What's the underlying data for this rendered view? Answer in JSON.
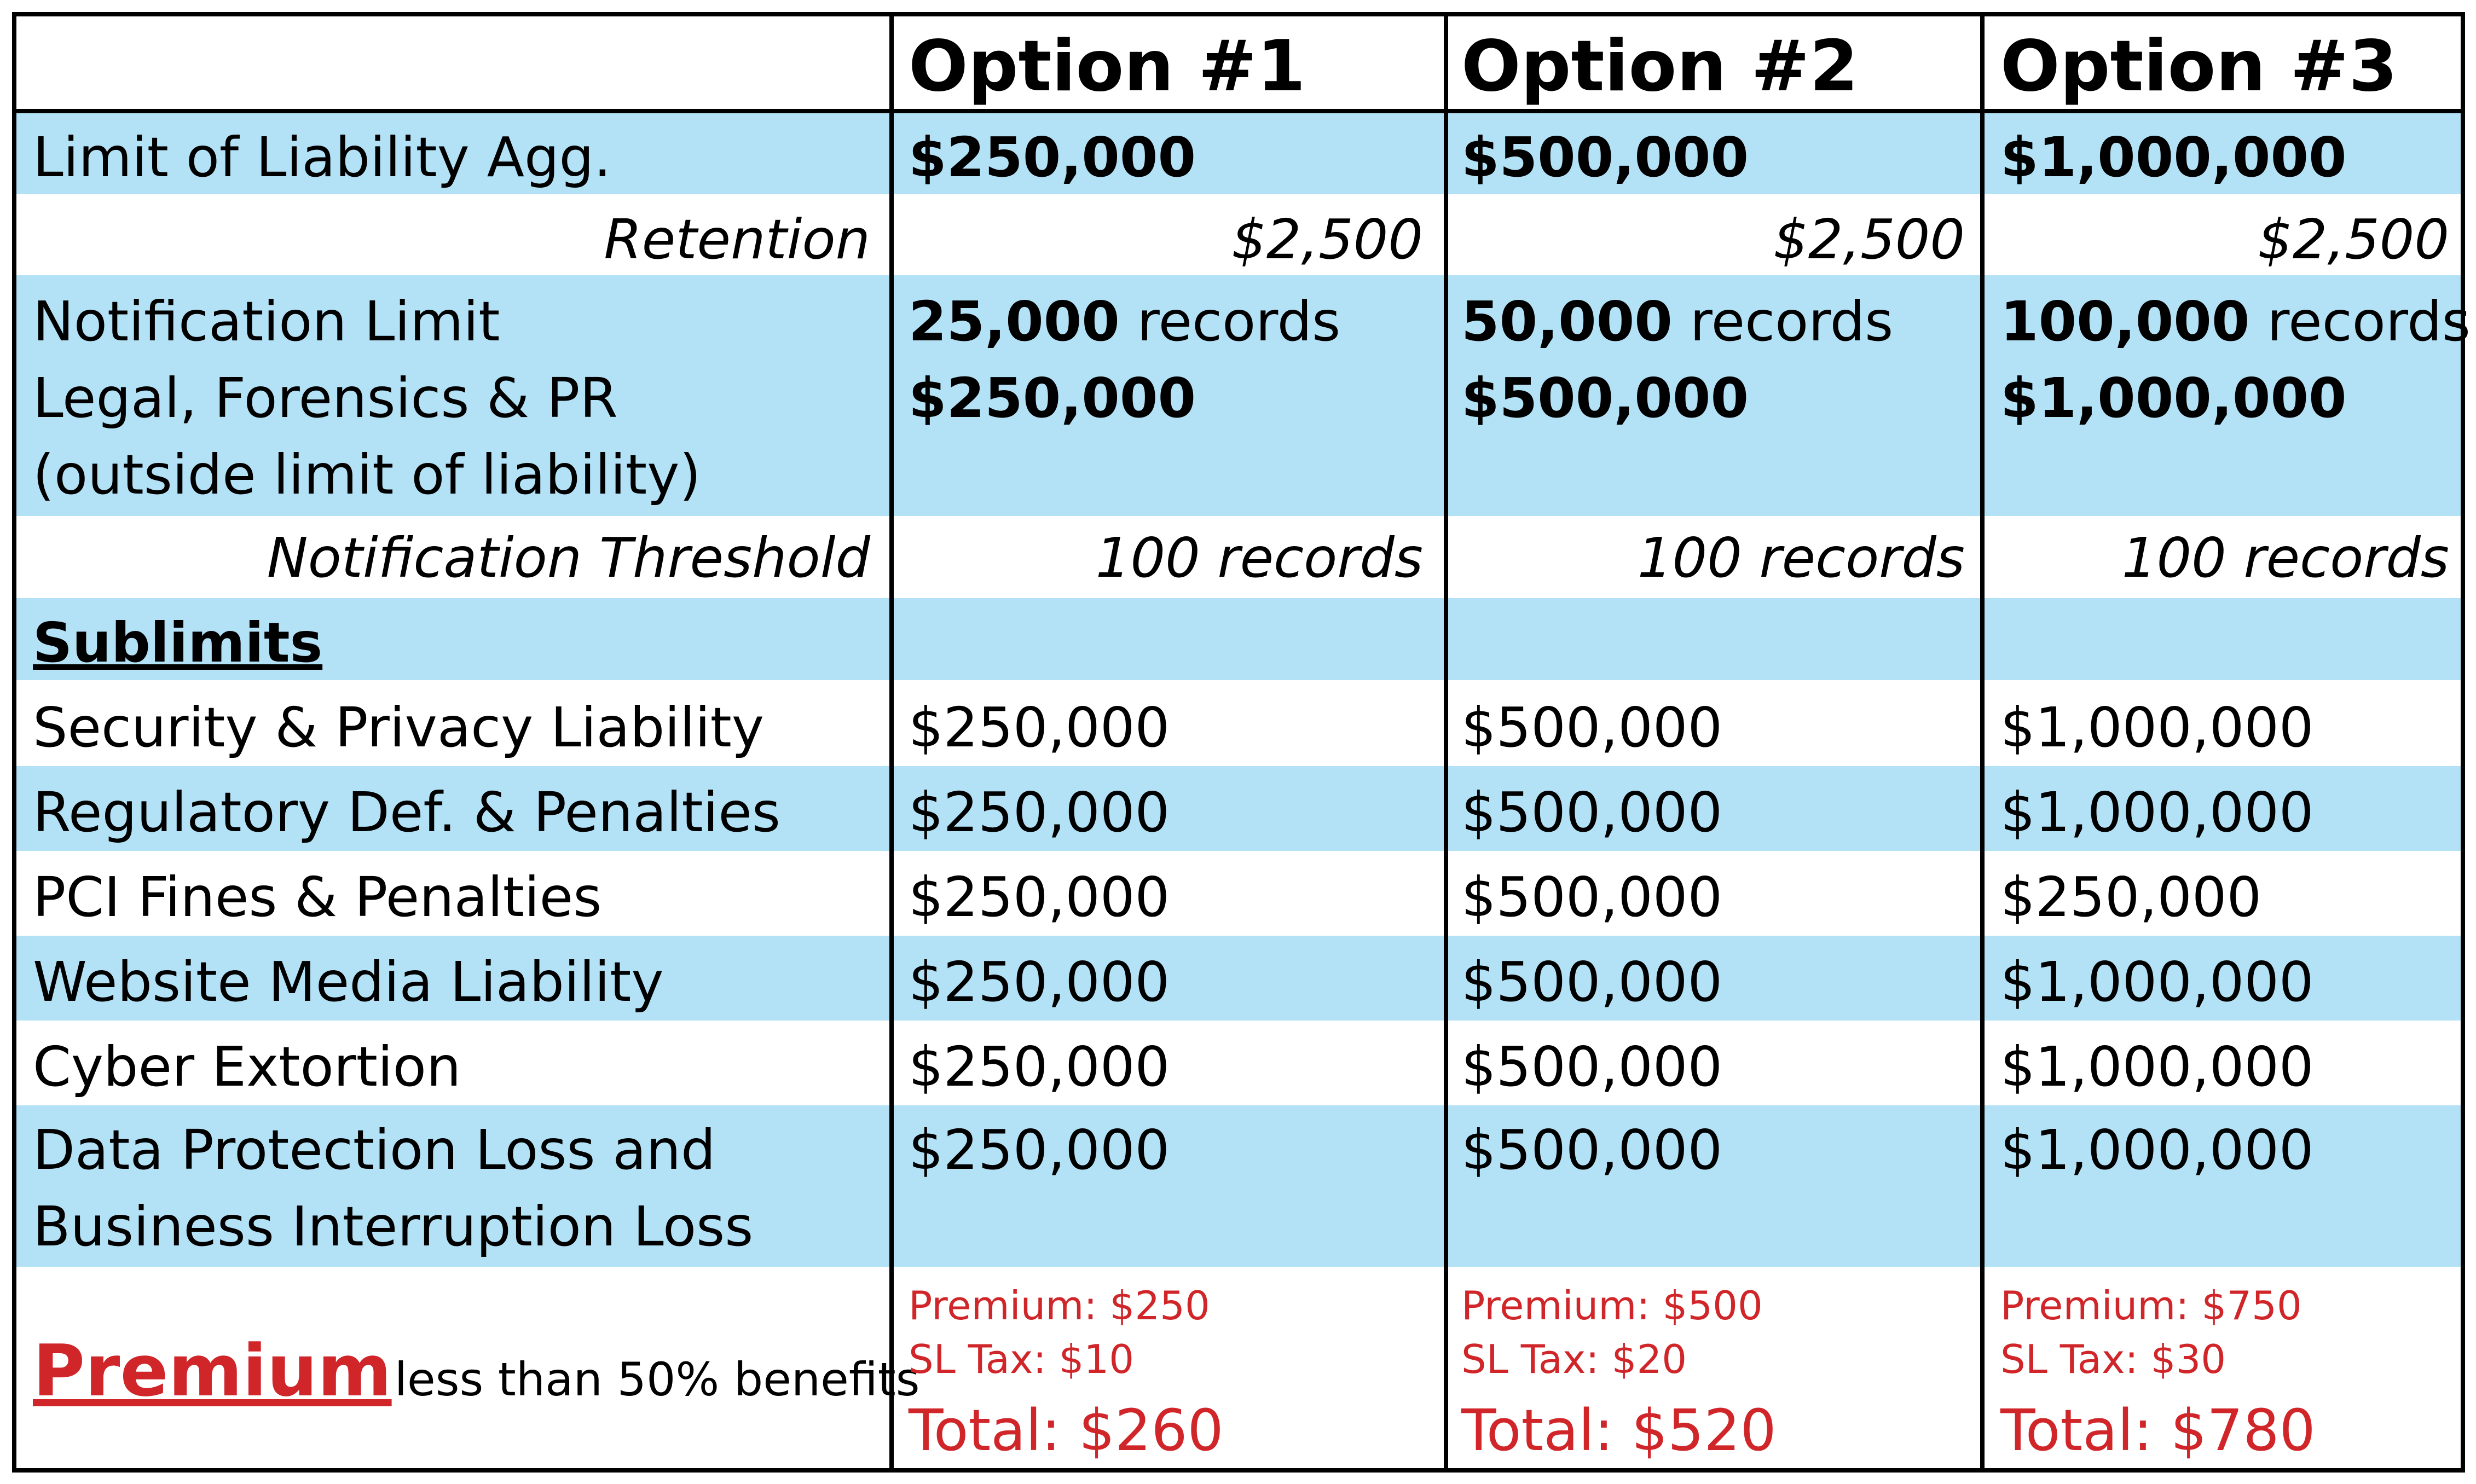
{
  "columns": [
    "",
    "Option #1",
    "Option #2",
    "Option #3"
  ],
  "limit_of_liability": {
    "label": "Limit of Liability Agg.",
    "values": [
      "$250,000",
      "$500,000",
      "$1,000,000"
    ]
  },
  "retention": {
    "label": "Retention",
    "values": [
      "$2,500",
      "$2,500",
      "$2,500"
    ]
  },
  "notification": {
    "label_lines": [
      "Notification Limit",
      "Legal, Forensics & PR",
      "(outside limit of liability)"
    ],
    "records_bold": [
      "25,000",
      "50,000",
      "100,000"
    ],
    "records_unit": "records",
    "amounts": [
      "$250,000",
      "$500,000",
      "$1,000,000"
    ]
  },
  "notification_threshold": {
    "label": "Notification Threshold",
    "values": [
      "100 records",
      "100 records",
      "100 records"
    ]
  },
  "sublimits_heading": "Sublimits",
  "sublimits": [
    {
      "label": "Security & Privacy Liability",
      "values": [
        "$250,000",
        "$500,000",
        "$1,000,000"
      ]
    },
    {
      "label": "Regulatory Def. & Penalties",
      "values": [
        "$250,000",
        "$500,000",
        "$1,000,000"
      ]
    },
    {
      "label": "PCI Fines & Penalties",
      "values": [
        "$250,000",
        "$500,000",
        "$250,000"
      ]
    },
    {
      "label": "Website Media Liability",
      "values": [
        "$250,000",
        "$500,000",
        "$1,000,000"
      ]
    },
    {
      "label": "Cyber Extortion",
      "values": [
        "$250,000",
        "$500,000",
        "$1,000,000"
      ]
    }
  ],
  "data_protection": {
    "label_lines": [
      "Data Protection Loss and",
      "Business Interruption Loss"
    ],
    "values": [
      "$250,000",
      "$500,000",
      "$1,000,000"
    ]
  },
  "premium": {
    "label": "Premium",
    "note": "less than 50% benefits",
    "options": [
      {
        "premium": "Premium: $250",
        "tax": "SL Tax: $10",
        "total": "Total: $260"
      },
      {
        "premium": "Premium: $500",
        "tax": "SL Tax: $20",
        "total": "Total: $520"
      },
      {
        "premium": "Premium: $750",
        "tax": "SL Tax: $30",
        "total": "Total: $780"
      }
    ]
  },
  "colors": {
    "band": "#b3e2f7",
    "premium_red": "#d0262a",
    "border": "#000000"
  }
}
